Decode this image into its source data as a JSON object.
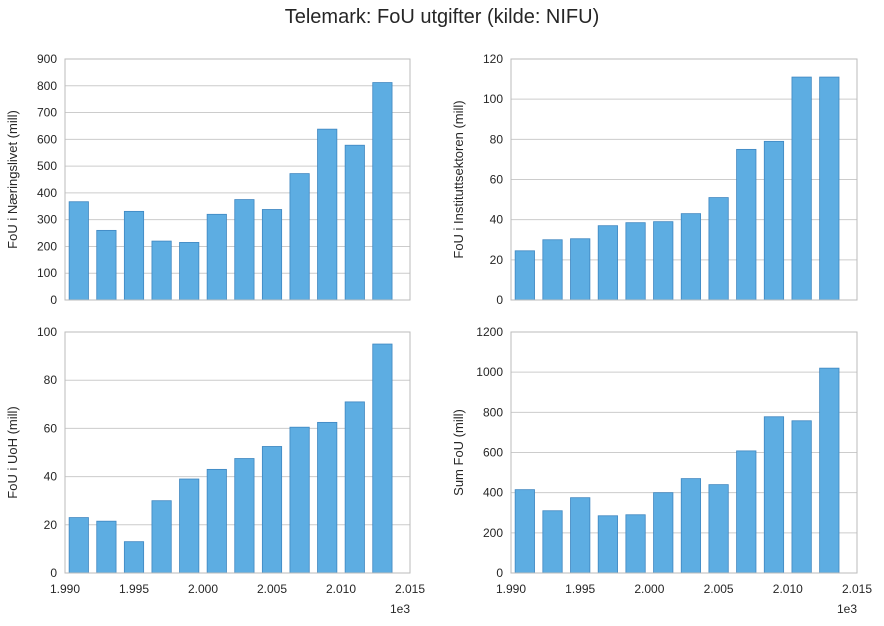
{
  "title": "Telemark: FoU utgifter (kilde: NIFU)",
  "x_multiplier": "1e3",
  "bar_color": "#5DADE2",
  "chart_data": [
    {
      "type": "bar",
      "ylabel": "FoU i Næringslivet (mill)",
      "x": [
        1991,
        1993,
        1995,
        1997,
        1999,
        2001,
        2003,
        2005,
        2007,
        2009,
        2011,
        2013
      ],
      "values": [
        367,
        260,
        331,
        220,
        215,
        320,
        375,
        338,
        472,
        638,
        578,
        812
      ],
      "xlim": [
        1990,
        2015
      ],
      "ylim": [
        0,
        900
      ],
      "yticks": [
        "0",
        "100",
        "200",
        "300",
        "400",
        "500",
        "600",
        "700",
        "800",
        "900"
      ],
      "xticks": [
        "1.990",
        "1.995",
        "2.000",
        "2.005",
        "2.010",
        "2.015"
      ],
      "show_xticks": false,
      "grid": true
    },
    {
      "type": "bar",
      "ylabel": "FoU i Instituttsektoren (mill)",
      "x": [
        1991,
        1993,
        1995,
        1997,
        1999,
        2001,
        2003,
        2005,
        2007,
        2009,
        2011,
        2013
      ],
      "values": [
        24.5,
        30,
        30.5,
        37,
        38.5,
        39,
        43,
        51,
        75,
        79,
        111,
        111
      ],
      "xlim": [
        1990,
        2015
      ],
      "ylim": [
        0,
        120
      ],
      "yticks": [
        "0",
        "20",
        "40",
        "60",
        "80",
        "100",
        "120"
      ],
      "xticks": [
        "1.990",
        "1.995",
        "2.000",
        "2.005",
        "2.010",
        "2.015"
      ],
      "show_xticks": false,
      "grid": true
    },
    {
      "type": "bar",
      "ylabel": "FoU i UoH (mill)",
      "x": [
        1991,
        1993,
        1995,
        1997,
        1999,
        2001,
        2003,
        2005,
        2007,
        2009,
        2011,
        2013
      ],
      "values": [
        23,
        21.5,
        13,
        30,
        39,
        43,
        47.5,
        52.5,
        60.5,
        62.5,
        71,
        95
      ],
      "xlim": [
        1990,
        2015
      ],
      "ylim": [
        0,
        100
      ],
      "yticks": [
        "0",
        "20",
        "40",
        "60",
        "80",
        "100"
      ],
      "xticks": [
        "1.990",
        "1.995",
        "2.000",
        "2.005",
        "2.010",
        "2.015"
      ],
      "show_xticks": true,
      "grid": true
    },
    {
      "type": "bar",
      "ylabel": "Sum FoU (mill)",
      "x": [
        1991,
        1993,
        1995,
        1997,
        1999,
        2001,
        2003,
        2005,
        2007,
        2009,
        2011,
        2013
      ],
      "values": [
        415,
        310,
        375,
        285,
        290,
        400,
        470,
        440,
        608,
        778,
        758,
        1020
      ],
      "xlim": [
        1990,
        2015
      ],
      "ylim": [
        0,
        1200
      ],
      "yticks": [
        "0",
        "200",
        "400",
        "600",
        "800",
        "1000",
        "1200"
      ],
      "xticks": [
        "1.990",
        "1.995",
        "2.000",
        "2.005",
        "2.010",
        "2.015"
      ],
      "show_xticks": true,
      "grid": true
    }
  ]
}
